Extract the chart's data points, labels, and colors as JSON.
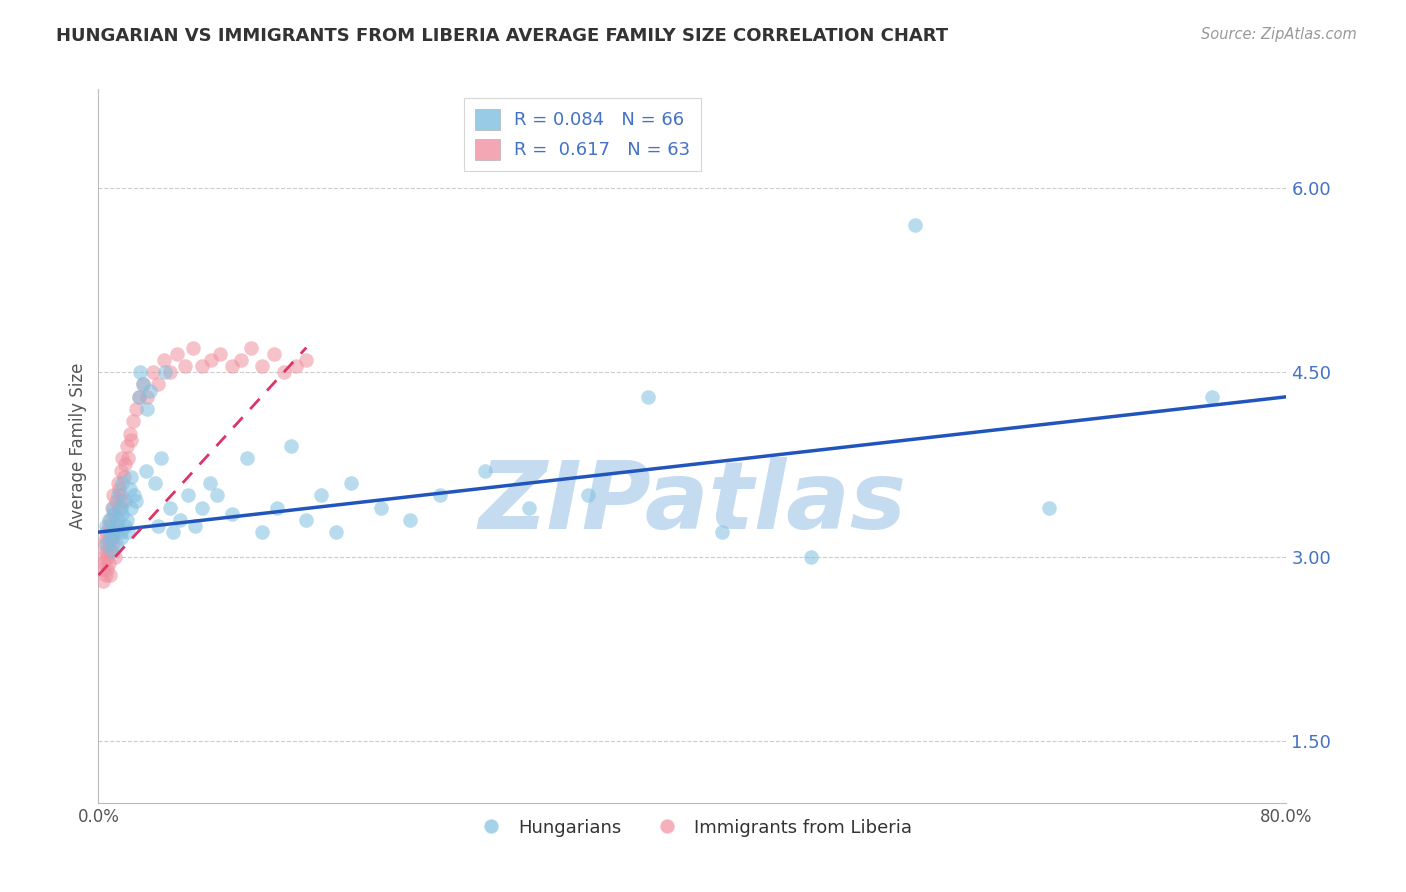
{
  "title": "HUNGARIAN VS IMMIGRANTS FROM LIBERIA AVERAGE FAMILY SIZE CORRELATION CHART",
  "source_text": "Source: ZipAtlas.com",
  "ylabel": "Average Family Size",
  "xlim": [
    0.0,
    0.8
  ],
  "ylim": [
    1.0,
    6.8
  ],
  "yticks": [
    1.5,
    3.0,
    4.5,
    6.0
  ],
  "xticks": [
    0.0,
    0.8
  ],
  "xticklabels": [
    "0.0%",
    "80.0%"
  ],
  "legend_label_blue": "R = 0.084   N = 66",
  "legend_label_pink": "R =  0.617   N = 63",
  "hungarian_color": "#7fbfdf",
  "liberia_color": "#f090a0",
  "hungarian_trend_color": "#2255bb",
  "liberia_trend_color": "#dd3366",
  "watermark": "ZIPatlas",
  "watermark_color": "#c5dcf0",
  "background_color": "#ffffff",
  "grid_color": "#cccccc",
  "hungarian_x": [
    0.005,
    0.005,
    0.007,
    0.008,
    0.008,
    0.009,
    0.01,
    0.01,
    0.01,
    0.012,
    0.012,
    0.013,
    0.013,
    0.015,
    0.015,
    0.015,
    0.016,
    0.016,
    0.018,
    0.018,
    0.019,
    0.02,
    0.021,
    0.022,
    0.022,
    0.024,
    0.025,
    0.027,
    0.028,
    0.03,
    0.032,
    0.033,
    0.035,
    0.038,
    0.04,
    0.042,
    0.045,
    0.048,
    0.05,
    0.055,
    0.06,
    0.065,
    0.07,
    0.075,
    0.08,
    0.09,
    0.1,
    0.11,
    0.12,
    0.13,
    0.14,
    0.15,
    0.16,
    0.17,
    0.19,
    0.21,
    0.23,
    0.26,
    0.29,
    0.33,
    0.37,
    0.42,
    0.48,
    0.55,
    0.64,
    0.75
  ],
  "hungarian_y": [
    3.25,
    3.1,
    3.3,
    3.15,
    3.2,
    3.05,
    3.35,
    3.4,
    3.2,
    3.1,
    3.25,
    3.3,
    3.5,
    3.2,
    3.15,
    3.4,
    3.6,
    3.35,
    3.25,
    3.45,
    3.3,
    3.2,
    3.55,
    3.4,
    3.65,
    3.5,
    3.45,
    4.3,
    4.5,
    4.4,
    3.7,
    4.2,
    4.35,
    3.6,
    3.25,
    3.8,
    4.5,
    3.4,
    3.2,
    3.3,
    3.5,
    3.25,
    3.4,
    3.6,
    3.5,
    3.35,
    3.8,
    3.2,
    3.4,
    3.9,
    3.3,
    3.5,
    3.2,
    3.6,
    3.4,
    3.3,
    3.5,
    3.7,
    3.4,
    3.5,
    4.3,
    3.2,
    3.0,
    5.7,
    3.4,
    4.3
  ],
  "liberia_x": [
    0.003,
    0.003,
    0.003,
    0.004,
    0.004,
    0.005,
    0.005,
    0.005,
    0.005,
    0.006,
    0.006,
    0.007,
    0.007,
    0.007,
    0.008,
    0.008,
    0.008,
    0.009,
    0.009,
    0.01,
    0.01,
    0.01,
    0.011,
    0.011,
    0.012,
    0.012,
    0.013,
    0.013,
    0.014,
    0.014,
    0.015,
    0.015,
    0.016,
    0.016,
    0.017,
    0.018,
    0.019,
    0.02,
    0.021,
    0.022,
    0.023,
    0.025,
    0.027,
    0.03,
    0.033,
    0.037,
    0.04,
    0.044,
    0.048,
    0.053,
    0.058,
    0.064,
    0.07,
    0.076,
    0.082,
    0.09,
    0.096,
    0.103,
    0.11,
    0.118,
    0.125,
    0.133,
    0.14
  ],
  "liberia_y": [
    3.0,
    2.8,
    2.9,
    3.1,
    2.95,
    3.05,
    2.85,
    3.15,
    3.2,
    3.0,
    2.9,
    3.1,
    3.25,
    2.95,
    3.05,
    3.3,
    2.85,
    3.15,
    3.4,
    3.1,
    3.2,
    3.5,
    3.0,
    3.35,
    3.2,
    3.45,
    3.25,
    3.6,
    3.4,
    3.55,
    3.5,
    3.7,
    3.45,
    3.8,
    3.65,
    3.75,
    3.9,
    3.8,
    4.0,
    3.95,
    4.1,
    4.2,
    4.3,
    4.4,
    4.3,
    4.5,
    4.4,
    4.6,
    4.5,
    4.65,
    4.55,
    4.7,
    4.55,
    4.6,
    4.65,
    4.55,
    4.6,
    4.7,
    4.55,
    4.65,
    4.5,
    4.55,
    4.6
  ],
  "hungarian_trend_x": [
    0.0,
    0.8
  ],
  "hungarian_trend_y": [
    3.2,
    4.3
  ],
  "liberia_trend_x": [
    0.0,
    0.14
  ],
  "liberia_trend_y": [
    2.85,
    4.7
  ]
}
